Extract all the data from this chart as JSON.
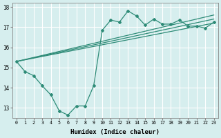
{
  "xlabel": "Humidex (Indice chaleur)",
  "ylabel": "",
  "x": [
    0,
    1,
    2,
    3,
    4,
    5,
    6,
    7,
    8,
    9,
    10,
    11,
    12,
    13,
    14,
    15,
    16,
    17,
    18,
    19,
    20,
    21,
    22,
    23
  ],
  "y_main": [
    15.3,
    14.8,
    14.6,
    14.1,
    13.65,
    12.85,
    12.65,
    13.1,
    13.1,
    14.1,
    16.85,
    17.35,
    17.25,
    17.8,
    17.55,
    17.1,
    17.4,
    17.15,
    17.15,
    17.35,
    17.05,
    17.05,
    16.95,
    17.25
  ],
  "y_line1_x": [
    0,
    23
  ],
  "y_line1_y": [
    15.3,
    17.2
  ],
  "y_line2_x": [
    0,
    23
  ],
  "y_line2_y": [
    15.3,
    17.4
  ],
  "y_line3_x": [
    0,
    23
  ],
  "y_line3_y": [
    15.3,
    17.6
  ],
  "ylim": [
    12.5,
    18.2
  ],
  "xlim": [
    -0.5,
    23.5
  ],
  "line_color": "#2e8b77",
  "bg_color": "#d6eeee",
  "grid_color": "#ffffff",
  "xtick_labels": [
    "0",
    "1",
    "2",
    "3",
    "4",
    "5",
    "6",
    "7",
    "8",
    "9",
    "10",
    "11",
    "12",
    "13",
    "14",
    "15",
    "16",
    "17",
    "18",
    "19",
    "20",
    "21",
    "22",
    "23"
  ],
  "ytick_labels": [
    "13",
    "14",
    "15",
    "16",
    "17",
    "18"
  ],
  "yticks": [
    13,
    14,
    15,
    16,
    17,
    18
  ]
}
